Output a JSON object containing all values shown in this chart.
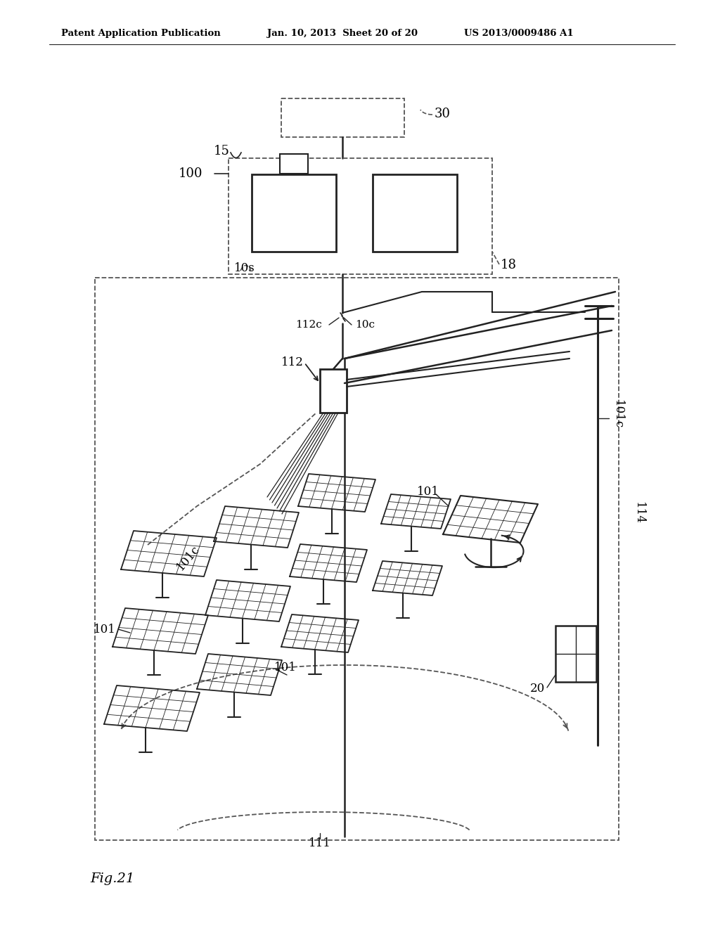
{
  "bg_color": "#ffffff",
  "line_color": "#222222",
  "dash_color": "#555555",
  "header_left": "Patent Application Publication",
  "header_mid": "Jan. 10, 2013  Sheet 20 of 20",
  "header_right": "US 2013/0009486 A1",
  "figure_label": "Fig.21"
}
